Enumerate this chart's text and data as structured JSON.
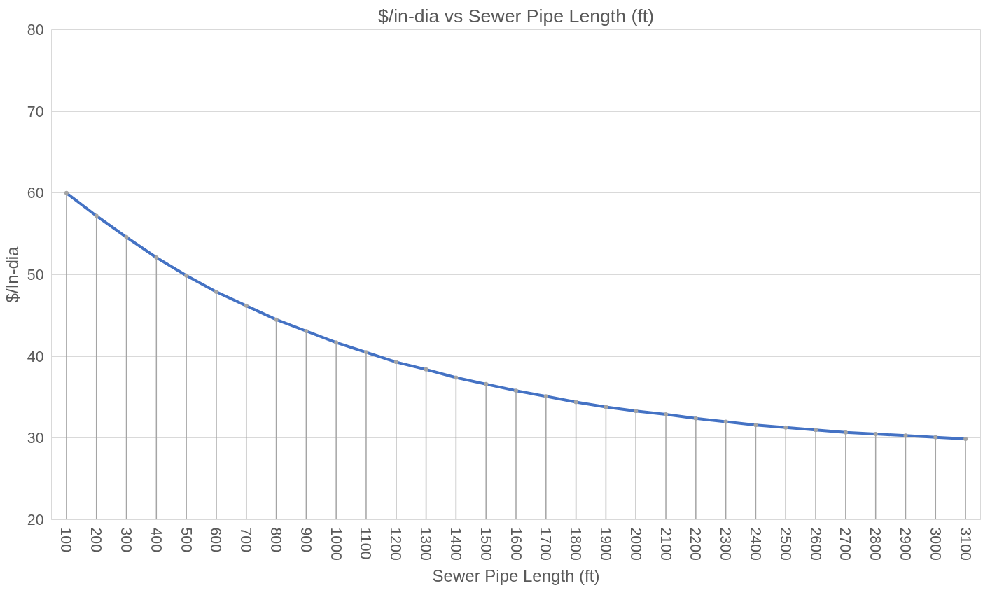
{
  "chart_data": {
    "type": "line",
    "title": "$/in-dia vs Sewer Pipe Length (ft)",
    "xlabel": "Sewer Pipe Length (ft)",
    "ylabel": "$/In-dia",
    "categories": [
      "100",
      "200",
      "300",
      "400",
      "500",
      "600",
      "700",
      "800",
      "900",
      "1000",
      "1100",
      "1200",
      "1300",
      "1400",
      "1500",
      "1600",
      "1700",
      "1800",
      "1900",
      "2000",
      "2100",
      "2200",
      "2300",
      "2400",
      "2500",
      "2600",
      "2700",
      "2800",
      "2900",
      "3000",
      "3100"
    ],
    "series": [
      {
        "color": "#4472c4",
        "line_style": "solid",
        "values": [
          60,
          57.2,
          54.6,
          52.1,
          49.9,
          47.9,
          46.2,
          44.5,
          43.1,
          41.7,
          40.5,
          39.3,
          38.4,
          37.4,
          36.6,
          35.8,
          35.1,
          34.4,
          33.8,
          33.3,
          32.9,
          32.4,
          32.0,
          31.6,
          31.3,
          31.0,
          30.7,
          30.5,
          30.3,
          30.1,
          29.9
        ]
      },
      {
        "type": "lollipop",
        "marker": "circle",
        "color": "#a5a5a5",
        "values": [
          60,
          57.2,
          54.6,
          52.1,
          49.9,
          47.9,
          46.2,
          44.5,
          43.1,
          41.7,
          40.5,
          39.3,
          38.4,
          37.4,
          36.6,
          35.8,
          35.1,
          34.4,
          33.8,
          33.3,
          32.9,
          32.4,
          32.0,
          31.6,
          31.3,
          31.0,
          30.7,
          30.5,
          30.3,
          30.1,
          29.9
        ]
      }
    ],
    "ylim": [
      20,
      80
    ],
    "yticks": [
      20,
      30,
      40,
      50,
      60,
      70,
      80
    ],
    "grid": "y"
  }
}
